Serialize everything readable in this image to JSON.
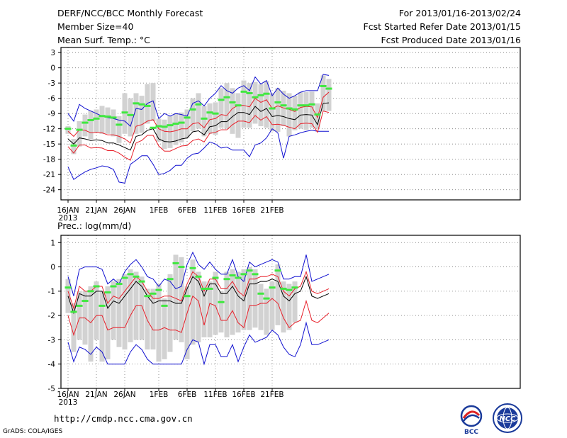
{
  "header": {
    "title": "DERF/NCC/BCC Monthly Forecast",
    "member_size": "Member Size=40",
    "variable": "Mean Surf. Temp.: °C",
    "period": "For 2013/01/16-2013/02/24",
    "refer_date": "Fcst Started Refer Date 2013/01/15",
    "produced_date": "Fcst Produced Date 2013/01/16"
  },
  "footer": {
    "url": "http://cmdp.ncc.cma.gov.cn",
    "grads": "GrADS: COLA/IGES",
    "logo_bcc": "BCC",
    "logo_ncc": "NCC"
  },
  "colors": {
    "ensemble_mean": "#000000",
    "one_sigma": "#e8202a",
    "extremes": "#1010d0",
    "median_marker": "#40e840",
    "box": "#d2d2d2",
    "grid": "#7a7a7a"
  },
  "chart_data": [
    {
      "type": "line",
      "title": "Mean Surf. Temp.: °C",
      "xlabel": "",
      "ylabel": "°C",
      "ylim": [
        -26,
        4
      ],
      "yticks": [
        3,
        0,
        -3,
        -6,
        -9,
        -12,
        -15,
        -18,
        -21,
        -24
      ],
      "ytick_labels": [
        "3",
        "0",
        "-3",
        "-6",
        "-9",
        "-12",
        "-15",
        "-18",
        "-21",
        "-24"
      ],
      "xtick_labels": [
        "16JAN",
        "21JAN",
        "26JAN",
        "1FEB",
        "6FEB",
        "11FEB",
        "16FEB",
        "21FEB"
      ],
      "xtick_days": [
        0,
        5,
        10,
        16,
        21,
        26,
        31,
        36
      ],
      "year_label": "2013",
      "grid": true,
      "series": [
        {
          "name": "max",
          "values": [
            -9,
            -10.5,
            -7.2,
            -8,
            -8.5,
            -9,
            -9.5,
            -9.8,
            -10,
            -10.3,
            -10.5,
            -11.5,
            -8,
            -8.2,
            -7,
            -6.5,
            -10,
            -9,
            -9.5,
            -9,
            -9.2,
            -9.5,
            -7,
            -6.5,
            -7.5,
            -6,
            -5,
            -3.5,
            -4.5,
            -5,
            -4,
            -3.5,
            -4.5,
            -1.8,
            -3.2,
            -2.5,
            -5.5,
            -4,
            -5.2,
            -6,
            -5.5,
            -4.8,
            -4.5,
            -4.5,
            -4.5,
            -1.3,
            -1.5
          ]
        },
        {
          "name": "plus_sigma",
          "values": [
            -12.5,
            -13.5,
            -12.2,
            -12.3,
            -12.8,
            -12.7,
            -12.8,
            -13.2,
            -13.2,
            -13.5,
            -14,
            -14.8,
            -11.5,
            -11.2,
            -10.5,
            -10.2,
            -12,
            -12.5,
            -12.6,
            -12.4,
            -12,
            -12,
            -11,
            -10.8,
            -11.8,
            -10.2,
            -10,
            -9.2,
            -9.4,
            -8,
            -7.4,
            -7.4,
            -7.7,
            -6,
            -6.8,
            -6.3,
            -8,
            -7.5,
            -7.9,
            -8.2,
            -8.6,
            -7.8,
            -7.6,
            -7.7,
            -9.8,
            -5.8,
            -4.8
          ]
        },
        {
          "name": "mean",
          "values": [
            -14,
            -15,
            -13.8,
            -14,
            -14.3,
            -14.2,
            -14.3,
            -14.8,
            -14.8,
            -15.2,
            -15.7,
            -16.2,
            -13.5,
            -13.2,
            -12.3,
            -12,
            -14,
            -14.5,
            -14.6,
            -14.4,
            -14,
            -13.8,
            -12.6,
            -12.4,
            -13.2,
            -11.6,
            -11.4,
            -10.6,
            -10.6,
            -9.6,
            -8.8,
            -8.8,
            -9.2,
            -7.6,
            -8.6,
            -8,
            -9.6,
            -9.4,
            -9.6,
            -10,
            -10.2,
            -9.3,
            -9.2,
            -9.3,
            -11.2,
            -7,
            -6.9
          ]
        },
        {
          "name": "minus_sigma",
          "values": [
            -15.5,
            -16.8,
            -15.2,
            -15.2,
            -15.8,
            -15.7,
            -15.8,
            -16.3,
            -16.3,
            -16.8,
            -17.6,
            -18.2,
            -14.8,
            -14.3,
            -13.3,
            -13.3,
            -15.4,
            -16.4,
            -16.4,
            -15.9,
            -15.4,
            -15.3,
            -14.3,
            -14,
            -14.6,
            -12.9,
            -12.7,
            -12.2,
            -12.2,
            -11.2,
            -10.5,
            -10.5,
            -10.8,
            -9.4,
            -10.3,
            -9.6,
            -11.2,
            -11.1,
            -11.3,
            -11.7,
            -12,
            -11,
            -10.9,
            -11,
            -12.7,
            -8.5,
            -8.8
          ]
        },
        {
          "name": "min",
          "values": [
            -19.5,
            -22,
            -21.2,
            -20.5,
            -20,
            -19.7,
            -19.3,
            -19.5,
            -20,
            -22.5,
            -22.7,
            -19,
            -18.2,
            -17.3,
            -17.3,
            -19,
            -21,
            -20.8,
            -20.2,
            -19.2,
            -19.2,
            -17.8,
            -17,
            -16.8,
            -15.8,
            -14.6,
            -15,
            -15.8,
            -15.6,
            -16.2,
            -16.2,
            -16.2,
            -17.5,
            -15.2,
            -14.8,
            -13.8,
            -12,
            -12.8,
            -17.8,
            -13.5,
            -13.2,
            -12.8,
            -12.5,
            -12.3,
            -12.5,
            -12.5,
            -12.5
          ]
        },
        {
          "name": "median",
          "values": [
            -12,
            -15.3,
            -12.2,
            -10.8,
            -10.3,
            -10,
            -9.5,
            -9.6,
            -9.8,
            -11.2,
            -8.8,
            -9.3,
            -7,
            -7.2,
            -7.5,
            -11.8,
            -11.5,
            -11.6,
            -11.3,
            -11,
            -10.8,
            -9.8,
            -8.2,
            -7.2,
            -10,
            -8.8,
            -9,
            -6.3,
            -5.8,
            -6.8,
            -7.4,
            -4.7,
            -5,
            -5.8,
            -5.4,
            -5.1,
            -8,
            -6.8,
            -7.4,
            -8,
            -8.2,
            -7.4,
            -7.4,
            -7.2,
            -9.2,
            -3.6,
            -4.1
          ]
        },
        {
          "name": "box_high",
          "values": [
            -11.5,
            -14,
            -10.5,
            -9.2,
            -8.5,
            -8.2,
            -7.5,
            -7.8,
            -8.2,
            -9.5,
            -5,
            -6,
            -5,
            -5.5,
            -3.2,
            -3,
            -10,
            -10.2,
            -9.5,
            -9,
            -8.8,
            -8.2,
            -6,
            -5,
            -7.5,
            -7,
            -6.8,
            -4,
            -3,
            -4,
            -5,
            -2.5,
            -3,
            -2.8,
            -3.2,
            -2.6,
            -5,
            -4,
            -4.5,
            -5,
            -5.5,
            -4.8,
            -4.8,
            -4.7,
            -7,
            -1.5,
            -2.2
          ]
        },
        {
          "name": "box_low",
          "values": [
            -13,
            -17,
            -15.5,
            -13.5,
            -14,
            -12.8,
            -13,
            -13,
            -13.5,
            -14.8,
            -13,
            -13.5,
            -13,
            -12.8,
            -11,
            -10.5,
            -14.5,
            -16,
            -15.8,
            -15.2,
            -14.7,
            -13.8,
            -12.5,
            -12,
            -13.5,
            -13,
            -13.2,
            -11.8,
            -12,
            -13,
            -13.8,
            -11.8,
            -11.8,
            -11,
            -11.5,
            -11.8,
            -12.5,
            -12.6,
            -11.5,
            -13.5,
            -12.3,
            -12,
            -12.2,
            -11.8,
            -12,
            -8.5,
            -8.5
          ]
        }
      ]
    },
    {
      "type": "line",
      "title": "Prec.: log(mm/d)",
      "xlabel": "",
      "ylabel": "log(mm/d)",
      "ylim": [
        -5,
        1.3
      ],
      "yticks": [
        1,
        0,
        -1,
        -2,
        -3,
        -4,
        -5
      ],
      "ytick_labels": [
        "1",
        "0",
        "-1",
        "-2",
        "-3",
        "-4",
        "-5"
      ],
      "xtick_labels": [
        "16JAN",
        "21JAN",
        "26JAN",
        "1FEB",
        "6FEB",
        "11FEB",
        "16FEB",
        "21FEB"
      ],
      "xtick_days": [
        0,
        5,
        10,
        16,
        21,
        26,
        31,
        36
      ],
      "year_label": "2013",
      "grid": true,
      "series": [
        {
          "name": "max",
          "values": [
            -0.4,
            -1.2,
            -0.1,
            0,
            0,
            0,
            -0.1,
            -0.7,
            -0.5,
            -0.7,
            -0.2,
            0.1,
            0.3,
            0,
            -0.4,
            -0.5,
            -0.8,
            -0.5,
            -0.6,
            -0.9,
            -0.8,
            0.1,
            0.6,
            0.1,
            -0.1,
            0.2,
            -0.1,
            -0.3,
            -0.3,
            0.3,
            -0.4,
            -0.6,
            0.2,
            0,
            0.1,
            0.2,
            0.3,
            0.2,
            -0.5,
            -0.5,
            -0.4,
            -0.4,
            0.5,
            -0.6,
            -0.5,
            -0.4,
            -0.3
          ]
        },
        {
          "name": "plus_sigma",
          "values": [
            -1,
            -1.7,
            -0.8,
            -1,
            -1,
            -0.8,
            -0.8,
            -1.5,
            -1.2,
            -1.3,
            -1,
            -0.7,
            -0.4,
            -0.6,
            -1,
            -1.3,
            -1.3,
            -1.2,
            -1.2,
            -1.3,
            -1.4,
            -0.7,
            -0.2,
            -0.4,
            -1,
            -0.5,
            -0.5,
            -0.9,
            -0.9,
            -0.6,
            -1,
            -1.2,
            -0.5,
            -0.5,
            -0.4,
            -0.4,
            -0.3,
            -0.4,
            -1,
            -1.2,
            -0.9,
            -0.8,
            -0.2,
            -1,
            -1.1,
            -1,
            -0.9
          ]
        },
        {
          "name": "mean",
          "values": [
            -1.2,
            -1.9,
            -1.1,
            -1.2,
            -1.2,
            -1,
            -1,
            -1.7,
            -1.4,
            -1.5,
            -1.2,
            -0.9,
            -0.6,
            -0.8,
            -1.2,
            -1.5,
            -1.4,
            -1.4,
            -1.4,
            -1.5,
            -1.5,
            -0.9,
            -0.4,
            -0.6,
            -1.2,
            -0.7,
            -0.7,
            -1.1,
            -1.1,
            -0.8,
            -1.2,
            -1.4,
            -0.7,
            -0.7,
            -0.6,
            -0.6,
            -0.5,
            -0.6,
            -1.2,
            -1.4,
            -1.1,
            -1,
            -0.4,
            -1.2,
            -1.3,
            -1.2,
            -1.1
          ]
        },
        {
          "name": "minus_sigma",
          "values": [
            -2,
            -2.8,
            -2.1,
            -2.1,
            -2.3,
            -2,
            -2,
            -2.6,
            -2.5,
            -2.5,
            -2.5,
            -2,
            -1.6,
            -1.6,
            -2.2,
            -2.6,
            -2.6,
            -2.5,
            -2.6,
            -2.6,
            -2.7,
            -1.9,
            -1.2,
            -1.4,
            -2.4,
            -1.5,
            -1.6,
            -2.2,
            -2.2,
            -1.8,
            -2.3,
            -2.5,
            -1.6,
            -1.6,
            -1.5,
            -1.5,
            -1.3,
            -1.5,
            -2.1,
            -2.5,
            -2.3,
            -2.2,
            -1.4,
            -2.2,
            -2.3,
            -2.1,
            -1.9
          ]
        },
        {
          "name": "min",
          "values": [
            -3.1,
            -3.9,
            -3.3,
            -3.4,
            -3.6,
            -3.3,
            -3.5,
            -4,
            -4,
            -4,
            -4,
            -3.5,
            -3.2,
            -3.4,
            -3.8,
            -4,
            -4,
            -4,
            -4,
            -4,
            -4,
            -3.4,
            -3,
            -3.1,
            -4,
            -3.2,
            -3.2,
            -3.7,
            -3.7,
            -3.2,
            -3.9,
            -3.3,
            -2.8,
            -3.1,
            -3,
            -2.9,
            -2.6,
            -2.8,
            -3.3,
            -3.6,
            -3.7,
            -3.2,
            -2.3,
            -3.2,
            -3.2,
            -3.1,
            -3
          ]
        },
        {
          "name": "median",
          "values": [
            -0.85,
            -1.85,
            -1.6,
            -1.4,
            -1,
            -0.8,
            -1.6,
            -1.05,
            -0.8,
            -0.7,
            -0.45,
            -0.3,
            -0.4,
            -0.6,
            -1.2,
            -1.1,
            -0.95,
            -1.6,
            -0.5,
            0.15,
            0,
            -1.2,
            -0.05,
            -0.4,
            -0.9,
            -0.9,
            -0.45,
            -1.45,
            -0.5,
            -0.35,
            -0.45,
            -0.3,
            -0.15,
            -0.3,
            -1.1,
            -1.3,
            -0.85,
            -0.15,
            -0.9,
            -0.95,
            -0.85
          ]
        },
        {
          "name": "box_high",
          "values": [
            -0.5,
            -1.5,
            -1,
            -1,
            -0.8,
            -0.6,
            -1,
            -0.8,
            -0.6,
            -0.5,
            -0.3,
            -0.1,
            -0.2,
            -0.4,
            -0.9,
            -0.9,
            -0.7,
            -1.3,
            -0.3,
            0.5,
            0.4,
            -0.8,
            0.3,
            -0.2,
            -0.6,
            -0.6,
            -0.2,
            -1,
            -0.2,
            -0.1,
            -0.2,
            -0.1,
            0,
            -0.1,
            -0.7,
            -0.9,
            -0.6,
            0.1,
            -0.6,
            -0.7,
            -0.6
          ]
        },
        {
          "name": "box_low",
          "values": [
            -1.9,
            -3.5,
            -3,
            -3.2,
            -3.9,
            -3,
            -3.9,
            -3.8,
            -3,
            -3.3,
            -3.4,
            -3.1,
            -3,
            -3,
            -3.4,
            -3.4,
            -3.9,
            -3.8,
            -3.5,
            -3,
            -3.1,
            -3.8,
            -3.2,
            -3.1,
            -2.9,
            -2.9,
            -2.8,
            -2.7,
            -2.9,
            -2.8,
            -2.7,
            -2.6,
            -2.6,
            -2.5,
            -2.6,
            -2.8,
            -2.6,
            -2.4,
            -2.7,
            -2.6,
            -2.3
          ]
        }
      ]
    }
  ]
}
